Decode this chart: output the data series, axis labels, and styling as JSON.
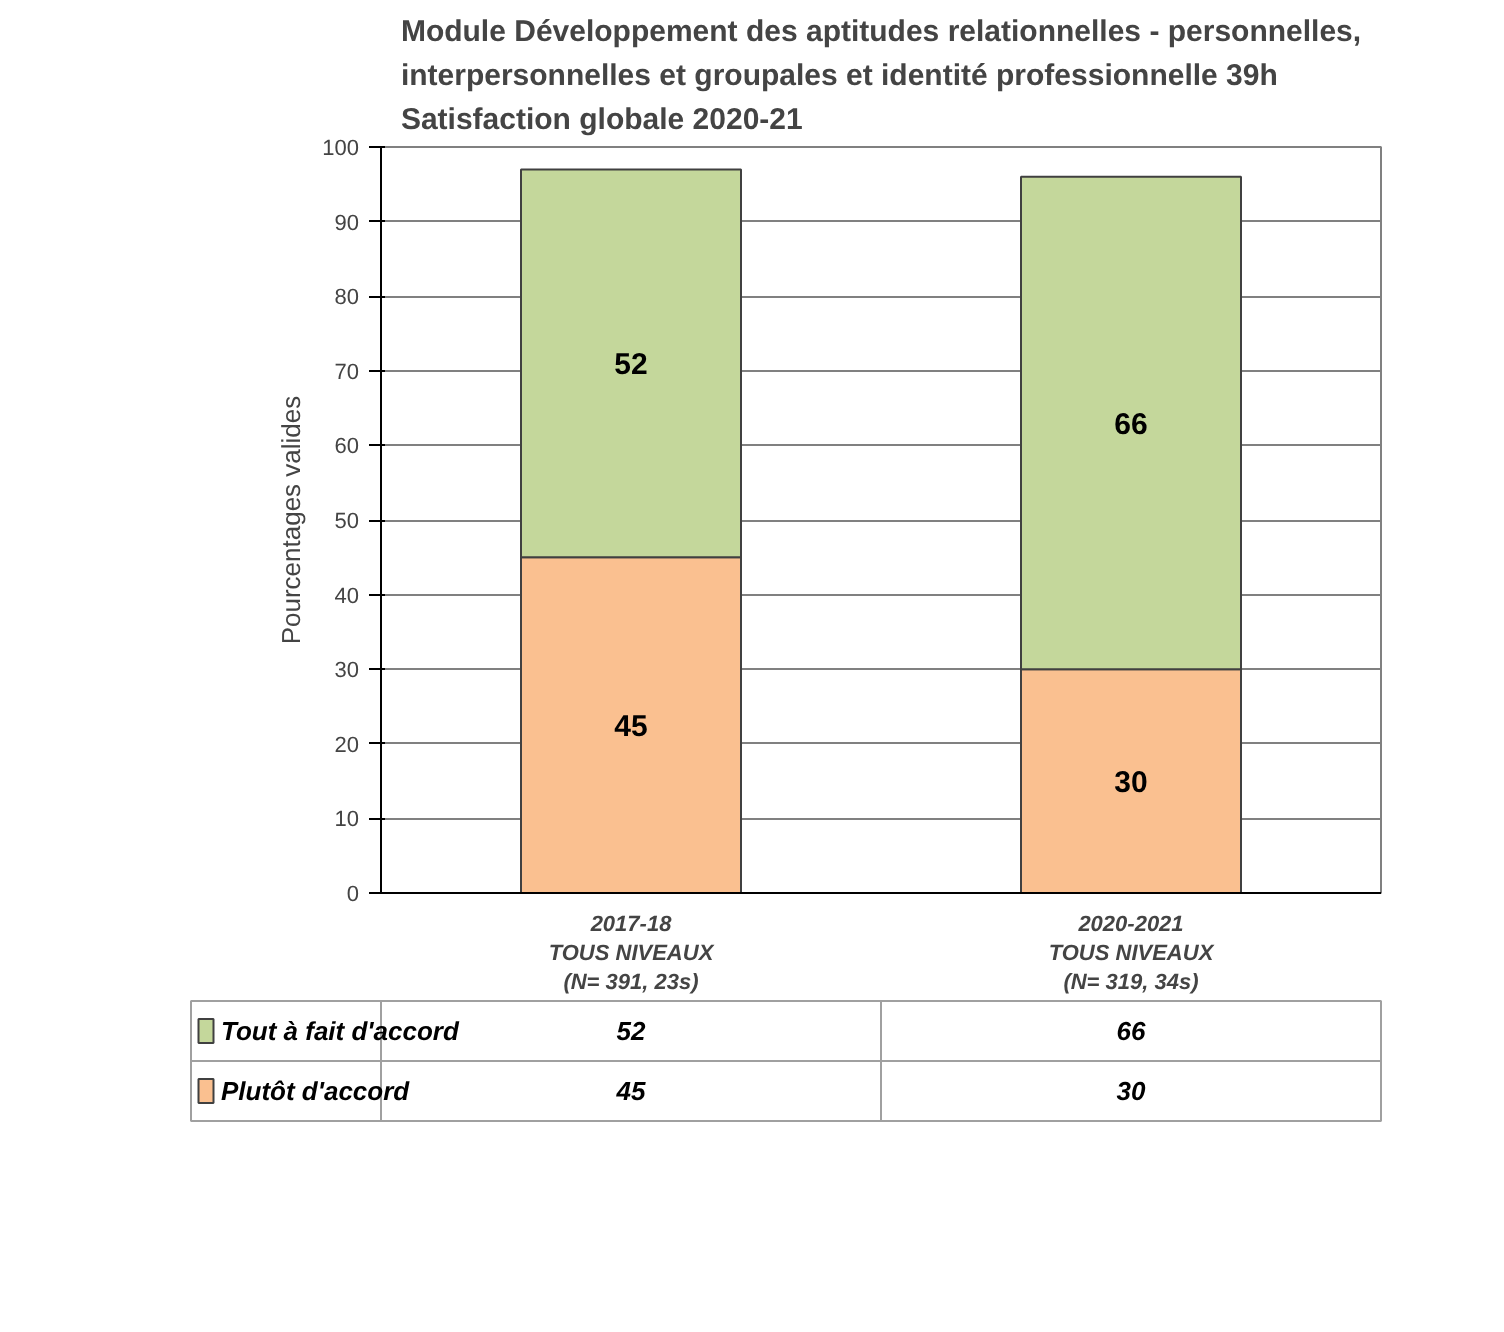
{
  "chart_data": {
    "type": "bar",
    "stacked": true,
    "title": "Module Développement des aptitudes relationnelles - personnelles,\ninterpersonnelles et groupales et identité professionnelle 39h\nSatisfaction globale 2020-21",
    "ylabel": "Pourcentages valides",
    "categories": [
      "2017-18\nTOUS NIVEAUX\n(N= 391, 23s)",
      "2020-2021\nTOUS NIVEAUX\n(N= 319, 34s)"
    ],
    "series": [
      {
        "name": "Plutôt d'accord",
        "color": "#fac090",
        "values": [
          45,
          30
        ],
        "value_labels": [
          "45",
          "30"
        ]
      },
      {
        "name": "Tout à fait d'accord",
        "color": "#c4d79b",
        "values": [
          52,
          66
        ],
        "value_labels": [
          "52",
          "66"
        ]
      }
    ],
    "ylim": [
      0,
      100
    ],
    "yticks": [
      0,
      10,
      20,
      30,
      40,
      50,
      60,
      70,
      80,
      90,
      100
    ],
    "grid": "y",
    "legend": "bottom",
    "data_labels": true
  }
}
